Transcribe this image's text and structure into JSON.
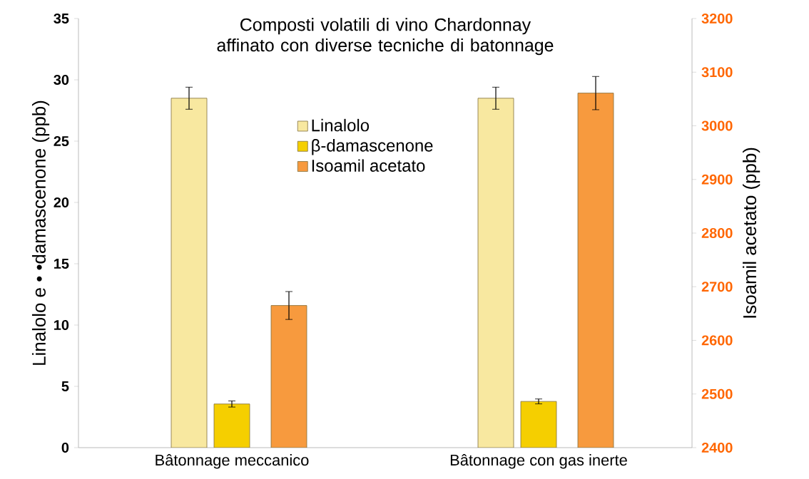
{
  "chart_data": {
    "type": "bar",
    "title": "Composti volatili di vino Chardonnay affinato con diverse tecniche di batonnage",
    "ylabel": "Linalolo e • •damascenone (ppb)",
    "y2label": "Isoamil acetato (ppb)",
    "categories": [
      "Bâtonnage meccanico",
      "Bâtonnage con gas inerte"
    ],
    "series": [
      {
        "name": "Linalolo",
        "color": "#f8e8a0",
        "values": [
          28.5,
          28.5
        ],
        "errors": [
          0.9,
          0.9
        ]
      },
      {
        "name": "β-damascenone",
        "color": "#f5cf00",
        "values": [
          3.56,
          3.77
        ],
        "errors": [
          0.25,
          0.2
        ]
      },
      {
        "name": "Isoamil acetato",
        "color": "#f79a3e",
        "axis": "y2",
        "values": [
          2665,
          3061
        ],
        "errors": [
          26,
          31
        ]
      }
    ],
    "ylim": [
      0,
      35
    ],
    "yticks": [
      0,
      5,
      10,
      15,
      20,
      25,
      30,
      35
    ],
    "y2lim": [
      2400,
      3200
    ],
    "y2ticks": [
      2400,
      2500,
      2600,
      2700,
      2800,
      2900,
      3000,
      3100,
      3200
    ],
    "legend": "top",
    "grid": false
  }
}
